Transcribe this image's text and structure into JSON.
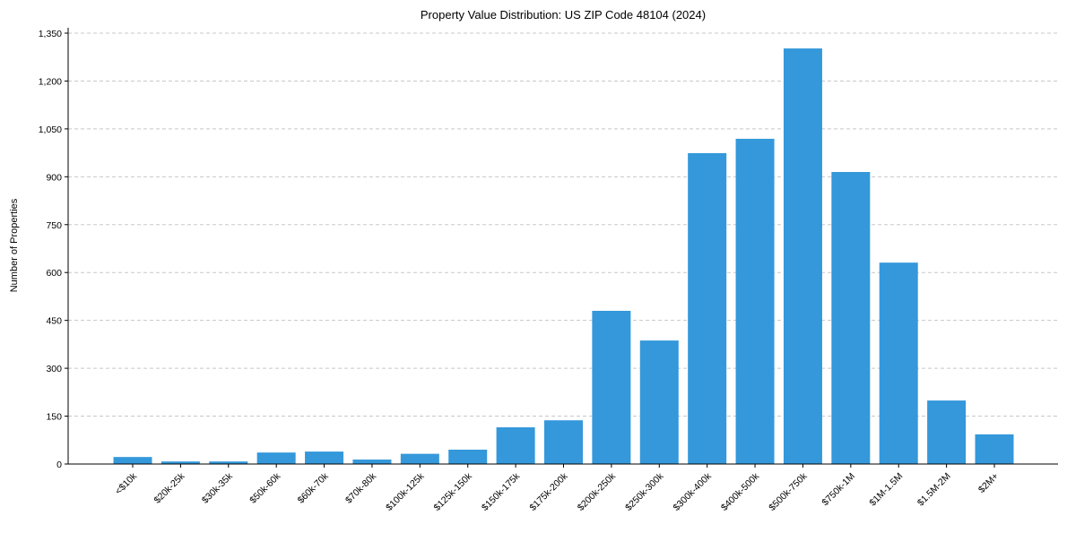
{
  "chart_data": {
    "type": "bar",
    "title": "Property Value Distribution: US ZIP Code 48104 (2024)",
    "xlabel": "",
    "ylabel": "Number of Properties",
    "categories": [
      "<$10k",
      "$20k-25k",
      "$30k-35k",
      "$50k-60k",
      "$60k-70k",
      "$70k-80k",
      "$100k-125k",
      "$125k-150k",
      "$150k-175k",
      "$175k-200k",
      "$200k-250k",
      "$250k-300k",
      "$300k-400k",
      "$400k-500k",
      "$500k-750k",
      "$750k-1M",
      "$1M-1.5M",
      "$1.5M-2M",
      "$2M+"
    ],
    "values": [
      22,
      8,
      8,
      36,
      39,
      14,
      32,
      45,
      115,
      137,
      480,
      387,
      974,
      1019,
      1302,
      915,
      631,
      199,
      93
    ],
    "ylim": [
      0,
      1370
    ],
    "yticks": [
      0,
      150,
      300,
      450,
      600,
      750,
      900,
      1050,
      1200,
      1350
    ],
    "ytick_labels": [
      "0",
      "150",
      "300",
      "450",
      "600",
      "750",
      "900",
      "1,050",
      "1,200",
      "1,350"
    ],
    "grid": "y-dashed",
    "bar_color": "#3498db"
  }
}
